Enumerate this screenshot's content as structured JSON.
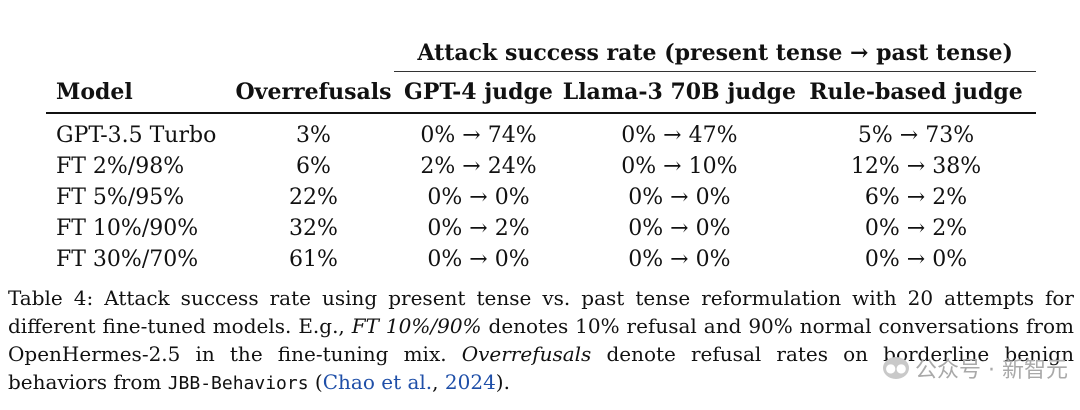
{
  "table": {
    "group_header": "Attack success rate (present tense → past tense)",
    "columns": [
      "Model",
      "Overrefusals",
      "GPT-4 judge",
      "Llama-3 70B judge",
      "Rule-based judge"
    ],
    "rows": [
      [
        "GPT-3.5 Turbo",
        "3%",
        "0% → 74%",
        "0% → 47%",
        "5% → 73%"
      ],
      [
        "FT 2%/98%",
        "6%",
        "2% → 24%",
        "0% → 10%",
        "12% → 38%"
      ],
      [
        "FT 5%/95%",
        "22%",
        "0% → 0%",
        "0% → 0%",
        "6% → 2%"
      ],
      [
        "FT 10%/90%",
        "32%",
        "0% → 2%",
        "0% → 0%",
        "0% → 2%"
      ],
      [
        "FT 30%/70%",
        "61%",
        "0% → 0%",
        "0% → 0%",
        "0% → 0%"
      ]
    ]
  },
  "caption": {
    "p1": "Table 4: Attack success rate using present tense vs. past tense reformulation with 20 attempts for different fine-tuned models. E.g., ",
    "em1": "FT 10%/90%",
    "p2": " denotes 10% refusal and 90% normal conversations from OpenHermes-2.5 in the fine-tuning mix. ",
    "em2": "Overrefusals",
    "p3": " denote refusal rates on borderline benign behaviors from ",
    "mono": "JBB-Behaviors",
    "p4": " (",
    "cite_author": "Chao et al.",
    "p5": ", ",
    "cite_year": "2024",
    "p6": ")."
  },
  "watermark": {
    "text": "公众号 · 新智元",
    "icon": "wechat-icon"
  }
}
